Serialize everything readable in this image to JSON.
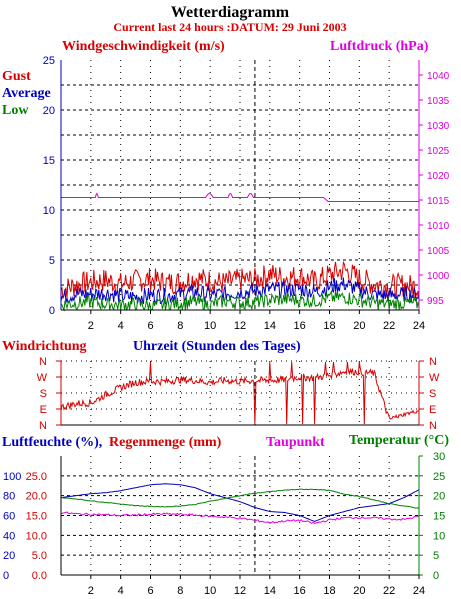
{
  "header": {
    "title": "Wetterdiagramm",
    "subtitle": "Current last 24 hours :DATUM: 29 Juni 2003"
  },
  "colors": {
    "red": "#d80000",
    "blue": "#0000c0",
    "green": "#008000",
    "magenta": "#e000e0",
    "black": "#000000",
    "grid": "#000000"
  },
  "chart_data": [
    {
      "type": "line",
      "title": "",
      "left_axis_label": "Windgeschwindigkeit (m/s)",
      "right_axis_label": "Luftdruck (hPa)",
      "legend": [
        "Gust",
        "Average",
        "Low"
      ],
      "x_ticks": [
        "2",
        "4",
        "6",
        "8",
        "10",
        "12",
        "14",
        "16",
        "18",
        "20",
        "22",
        "24"
      ],
      "xlim": [
        0,
        24
      ],
      "ylim_left": [
        0,
        25
      ],
      "y_ticks_left": [
        "0",
        "5",
        "10",
        "15",
        "20",
        "25"
      ],
      "ylim_right": [
        993,
        1043
      ],
      "y_ticks_right": [
        "995",
        "1000",
        "1005",
        "1010",
        "1015",
        "1020",
        "1025",
        "1030",
        "1035",
        "1040"
      ],
      "x_hours": [
        0,
        1,
        2,
        3,
        4,
        5,
        6,
        7,
        8,
        9,
        10,
        11,
        12,
        13,
        14,
        15,
        16,
        17,
        18,
        19,
        20,
        21,
        22,
        23,
        24
      ],
      "series": [
        {
          "name": "Gust",
          "axis": "left",
          "values": [
            2.0,
            2.5,
            2.8,
            3.0,
            2.6,
            2.9,
            3.1,
            2.7,
            2.8,
            3.2,
            2.9,
            2.7,
            3.0,
            3.0,
            3.6,
            3.2,
            3.4,
            2.8,
            3.5,
            4.0,
            3.1,
            2.6,
            2.4,
            2.5,
            2.3
          ]
        },
        {
          "name": "Average",
          "axis": "left",
          "values": [
            1.3,
            1.6,
            1.6,
            1.7,
            1.4,
            1.3,
            1.5,
            1.4,
            1.6,
            1.8,
            1.5,
            1.6,
            1.8,
            1.9,
            2.1,
            2.0,
            2.1,
            1.8,
            2.3,
            2.6,
            2.0,
            1.5,
            1.4,
            1.6,
            1.5
          ]
        },
        {
          "name": "Low",
          "axis": "left",
          "values": [
            0.5,
            0.7,
            0.8,
            0.6,
            0.5,
            0.6,
            0.4,
            0.5,
            0.7,
            0.8,
            0.5,
            0.9,
            0.7,
            0.8,
            1.0,
            1.1,
            1.0,
            0.9,
            1.2,
            1.3,
            1.0,
            0.7,
            0.6,
            0.7,
            0.6
          ]
        },
        {
          "name": "Luftdruck",
          "axis": "right",
          "values": [
            1015.5,
            1015.5,
            1015.5,
            1015.5,
            1015.5,
            1015.5,
            1015.5,
            1015.5,
            1015.5,
            1015.5,
            1015.5,
            1015.5,
            1015.5,
            1015.5,
            1015.5,
            1015.5,
            1015.5,
            1015.5,
            1014.7,
            1014.7,
            1014.7,
            1014.7,
            1014.7,
            1014.7,
            1014.7
          ]
        }
      ]
    },
    {
      "type": "line",
      "title": "Windrichtung",
      "center_label": "Uhrzeit (Stunden des Tages)",
      "y_ticks_left": [
        "N",
        "W",
        "S",
        "E",
        "N"
      ],
      "y_ticks_right": [
        "N",
        "W",
        "S",
        "E",
        "N"
      ],
      "ylim": [
        0,
        360
      ],
      "xlim": [
        0,
        24
      ],
      "x_hours": [
        0,
        1,
        2,
        3,
        4,
        5,
        6,
        7,
        8,
        9,
        10,
        11,
        12,
        13,
        14,
        15,
        16,
        17,
        18,
        19,
        20,
        21,
        22,
        23,
        24
      ],
      "series": [
        {
          "name": "Windrichtung",
          "values": [
            100,
            120,
            125,
            170,
            210,
            240,
            245,
            245,
            255,
            250,
            240,
            250,
            245,
            250,
            250,
            255,
            270,
            265,
            280,
            300,
            300,
            290,
            30,
            60,
            80
          ]
        }
      ]
    },
    {
      "type": "line",
      "left_axis_label_1": "Luftfeuchte (%),",
      "left_axis_label_2": "Regenmenge (mm)",
      "dew_label": "Taupunkt",
      "right_axis_label": "Temperatur (",
      "right_axis_unit": "°C",
      "right_axis_close": ")",
      "y_ticks_humidity": [
        "0",
        "20",
        "40",
        "60",
        "80",
        "100"
      ],
      "y_ticks_rain": [
        "0.0",
        "5.0",
        "10.0",
        "15.0",
        "20.0",
        "25.0"
      ],
      "y_ticks_temp": [
        "0",
        "5",
        "10",
        "15",
        "20",
        "25",
        "30"
      ],
      "ylim_humidity": [
        0,
        120
      ],
      "ylim_temp": [
        0,
        30
      ],
      "xlim": [
        0,
        24
      ],
      "x_hours": [
        0,
        1,
        2,
        3,
        4,
        5,
        6,
        7,
        8,
        9,
        10,
        11,
        12,
        13,
        14,
        15,
        16,
        17,
        18,
        19,
        20,
        21,
        22,
        23,
        24
      ],
      "series": [
        {
          "name": "Luftfeuchte",
          "axis": "humidity",
          "values": [
            78,
            80,
            82,
            83,
            85,
            88,
            91,
            92,
            91,
            88,
            82,
            78,
            74,
            68,
            64,
            63,
            60,
            54,
            60,
            64,
            68,
            70,
            72,
            78,
            86
          ]
        },
        {
          "name": "Temperatur",
          "axis": "temp",
          "values": [
            19.5,
            19.2,
            18.7,
            18.3,
            17.9,
            17.5,
            17.3,
            17.2,
            17.4,
            17.8,
            18.6,
            19.3,
            20.0,
            20.6,
            21.0,
            21.4,
            21.6,
            21.6,
            21.3,
            20.4,
            19.8,
            18.9,
            18.0,
            17.4,
            16.8
          ]
        },
        {
          "name": "Taupunkt",
          "axis": "temp",
          "values": [
            15.8,
            15.4,
            15.3,
            15.2,
            15.0,
            15.1,
            15.3,
            15.4,
            15.3,
            15.1,
            14.8,
            14.6,
            14.3,
            13.8,
            13.2,
            13.6,
            13.8,
            13.0,
            13.9,
            14.4,
            14.5,
            14.4,
            14.1,
            14.0,
            14.8
          ]
        }
      ]
    }
  ]
}
